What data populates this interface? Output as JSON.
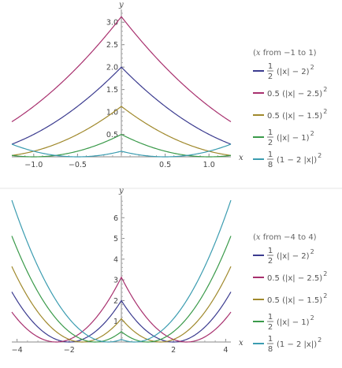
{
  "chart_data": [
    {
      "type": "line",
      "xlabel": "x",
      "ylabel": "y",
      "xlim": [
        -1.25,
        1.25
      ],
      "ylim": [
        0,
        3.25
      ],
      "xticks": [
        -1.0,
        -0.5,
        0.5,
        1.0
      ],
      "xtick_labels": [
        "−1.0",
        "−0.5",
        "0.5",
        "1.0"
      ],
      "yticks": [
        0.5,
        1.0,
        1.5,
        2.0,
        2.5,
        3.0
      ],
      "ytick_labels": [
        "0.5",
        "1.0",
        "1.5",
        "2.0",
        "2.5",
        "3.0"
      ],
      "legend_title": {
        "pre": "(",
        "var": "x",
        "post": " from −1 to 1)"
      },
      "legend_placement": "right",
      "series": [
        {
          "name": "1/2 (|x| − 2)^2",
          "color": "#3b3b8f",
          "a": 0.5,
          "b": 1,
          "c": 2
        },
        {
          "name": "0.5 (|x| − 2.5)^2",
          "color": "#a8306e",
          "a": 0.5,
          "b": 1,
          "c": 2.5
        },
        {
          "name": "0.5 (|x| − 1.5)^2",
          "color": "#a0892c",
          "a": 0.5,
          "b": 1,
          "c": 1.5
        },
        {
          "name": "1/2 (|x| − 1)^2",
          "color": "#3a9a4a",
          "a": 0.5,
          "b": 1,
          "c": 1
        },
        {
          "name": "1/8 (1 − 2 |x|)^2",
          "color": "#3b9cb0",
          "a": 0.125,
          "b": 2,
          "c": 1
        }
      ]
    },
    {
      "type": "line",
      "xlabel": "x",
      "ylabel": "y",
      "xlim": [
        -4.2,
        4.2
      ],
      "ylim": [
        0,
        7
      ],
      "xticks": [
        -4,
        -2,
        2,
        4
      ],
      "xtick_labels": [
        "−4",
        "−2",
        "2",
        "4"
      ],
      "yticks": [
        1,
        2,
        3,
        4,
        5,
        6
      ],
      "ytick_labels": [
        "1",
        "2",
        "3",
        "4",
        "5",
        "6"
      ],
      "legend_title": {
        "pre": "(",
        "var": "x",
        "post": " from −4 to 4)"
      },
      "legend_placement": "right",
      "series": [
        {
          "name": "1/2 (|x| − 2)^2",
          "color": "#3b3b8f",
          "a": 0.5,
          "b": 1,
          "c": 2
        },
        {
          "name": "0.5 (|x| − 2.5)^2",
          "color": "#a8306e",
          "a": 0.5,
          "b": 1,
          "c": 2.5
        },
        {
          "name": "0.5 (|x| − 1.5)^2",
          "color": "#a0892c",
          "a": 0.5,
          "b": 1,
          "c": 1.5
        },
        {
          "name": "1/2 (|x| − 1)^2",
          "color": "#3a9a4a",
          "a": 0.5,
          "b": 1,
          "c": 1
        },
        {
          "name": "1/8 (1 − 2 |x|)^2",
          "color": "#3b9cb0",
          "a": 0.125,
          "b": 2,
          "c": 1
        }
      ]
    }
  ],
  "legend_entries": [
    {
      "type": "frac",
      "num": "1",
      "den": "2",
      "expr": "(|x| − 2)",
      "exp": "2"
    },
    {
      "type": "plain",
      "expr": "0.5 (|x| − 2.5)",
      "exp": "2"
    },
    {
      "type": "plain",
      "expr": "0.5 (|x| − 1.5)",
      "exp": "2"
    },
    {
      "type": "frac",
      "num": "1",
      "den": "2",
      "expr": "(|x| − 1)",
      "exp": "2"
    },
    {
      "type": "frac",
      "num": "1",
      "den": "8",
      "expr": "(1 − 2 |x|)",
      "exp": "2"
    }
  ]
}
